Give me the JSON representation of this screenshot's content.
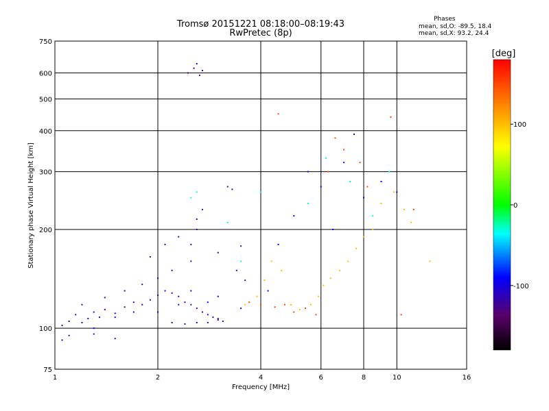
{
  "header": {
    "title_line1": "Tromsø 20151221 08:18:00–08:19:43",
    "title_line2": "RwPretec (8p)",
    "stats_title": "Phases",
    "stats_o": "mean, sd,O: -89.5, 18.4",
    "stats_x": "mean, sd,X:  93.2, 24.4"
  },
  "chart_data": {
    "type": "scatter",
    "title": "Tromsø 20151221 08:18:00–08:19:43",
    "subtitle": "RwPretec (8p)",
    "xlabel": "Frequency [MHz]",
    "ylabel": "Stationary phase Virtual Height [km]",
    "xscale": "log",
    "yscale": "log",
    "xlim": [
      1,
      16
    ],
    "ylim": [
      75,
      750
    ],
    "x_ticks": [
      1,
      2,
      4,
      6,
      8,
      10,
      16
    ],
    "x_tick_labels": [
      "1",
      "2",
      "4",
      "6",
      "8",
      "10",
      "16"
    ],
    "y_ticks": [
      75,
      100,
      200,
      300,
      400,
      500,
      600,
      750
    ],
    "y_tick_labels": [
      "75",
      "100",
      "200",
      "300",
      "400",
      "500",
      "600",
      "750"
    ],
    "grid": true,
    "colorbar": {
      "label": "[deg]",
      "range": [
        -180,
        180
      ],
      "ticks": [
        -100,
        0,
        100
      ],
      "tick_labels": [
        "-100",
        "0",
        "100"
      ]
    },
    "series": [
      {
        "phase_deg": -120,
        "points": [
          [
            1.05,
            102
          ],
          [
            1.1,
            105
          ],
          [
            1.15,
            110
          ],
          [
            1.2,
            104
          ],
          [
            1.25,
            107
          ],
          [
            1.3,
            112
          ],
          [
            1.35,
            108
          ],
          [
            1.4,
            114
          ],
          [
            1.5,
            111
          ],
          [
            1.6,
            116
          ],
          [
            1.7,
            120
          ],
          [
            1.8,
            118
          ],
          [
            1.9,
            122
          ],
          [
            2.0,
            126
          ],
          [
            2.1,
            130
          ],
          [
            2.2,
            128
          ],
          [
            2.3,
            125
          ],
          [
            2.4,
            120
          ],
          [
            2.5,
            118
          ],
          [
            2.6,
            115
          ],
          [
            2.7,
            112
          ],
          [
            2.8,
            110
          ],
          [
            2.9,
            108
          ],
          [
            3.0,
            106
          ],
          [
            3.1,
            105
          ],
          [
            1.2,
            118
          ],
          [
            1.4,
            124
          ],
          [
            1.6,
            130
          ],
          [
            1.8,
            136
          ],
          [
            2.0,
            142
          ],
          [
            2.2,
            150
          ],
          [
            2.5,
            160
          ],
          [
            2.5,
            180
          ],
          [
            2.6,
            200
          ],
          [
            2.6,
            215
          ],
          [
            2.7,
            230
          ],
          [
            2.55,
            620
          ],
          [
            2.6,
            640
          ],
          [
            2.45,
            600
          ],
          [
            2.7,
            610
          ],
          [
            2.65,
            590
          ],
          [
            1.05,
            92
          ],
          [
            1.1,
            95
          ],
          [
            1.3,
            96
          ],
          [
            1.5,
            93
          ],
          [
            2.2,
            104
          ],
          [
            2.4,
            103
          ],
          [
            2.6,
            104
          ],
          [
            2.8,
            104
          ],
          [
            3.0,
            107
          ],
          [
            3.2,
            270
          ],
          [
            3.3,
            265
          ],
          [
            3.4,
            150
          ],
          [
            3.6,
            140
          ],
          [
            3.0,
            170
          ],
          [
            2.1,
            180
          ],
          [
            1.9,
            165
          ],
          [
            2.3,
            190
          ],
          [
            3.5,
            178
          ]
        ]
      },
      {
        "phase_deg": -90,
        "points": [
          [
            1.3,
            100
          ],
          [
            1.5,
            108
          ],
          [
            1.7,
            112
          ],
          [
            2.0,
            112
          ],
          [
            2.3,
            118
          ],
          [
            2.5,
            130
          ],
          [
            2.8,
            120
          ],
          [
            3.0,
            125
          ],
          [
            3.5,
            115
          ],
          [
            4.2,
            130
          ],
          [
            4.5,
            180
          ],
          [
            5.0,
            220
          ],
          [
            5.5,
            300
          ],
          [
            6.0,
            270
          ],
          [
            6.5,
            200
          ],
          [
            7.0,
            320
          ],
          [
            7.5,
            390
          ],
          [
            8.0,
            250
          ],
          [
            9.0,
            280
          ],
          [
            10.0,
            260
          ]
        ]
      },
      {
        "phase_deg": -30,
        "points": [
          [
            2.5,
            250
          ],
          [
            2.6,
            260
          ],
          [
            3.2,
            210
          ],
          [
            3.5,
            160
          ],
          [
            4.0,
            260
          ],
          [
            5.5,
            240
          ],
          [
            6.2,
            330
          ],
          [
            7.3,
            280
          ],
          [
            8.5,
            220
          ],
          [
            9.5,
            300
          ]
        ]
      },
      {
        "phase_deg": 100,
        "points": [
          [
            3.6,
            118
          ],
          [
            3.9,
            125
          ],
          [
            4.1,
            140
          ],
          [
            4.3,
            160
          ],
          [
            4.6,
            150
          ],
          [
            4.9,
            118
          ],
          [
            5.2,
            114
          ],
          [
            5.6,
            118
          ],
          [
            5.9,
            125
          ],
          [
            6.1,
            135
          ],
          [
            6.4,
            142
          ],
          [
            6.8,
            150
          ],
          [
            7.2,
            160
          ],
          [
            7.6,
            175
          ],
          [
            8.0,
            190
          ],
          [
            8.5,
            200
          ],
          [
            9.0,
            240
          ],
          [
            9.8,
            260
          ],
          [
            10.5,
            230
          ],
          [
            11.0,
            210
          ],
          [
            12.5,
            160
          ]
        ]
      },
      {
        "phase_deg": 150,
        "points": [
          [
            3.7,
            120
          ],
          [
            4.0,
            118
          ],
          [
            4.4,
            116
          ],
          [
            4.7,
            118
          ],
          [
            5.0,
            112
          ],
          [
            5.4,
            115
          ],
          [
            5.8,
            110
          ],
          [
            6.3,
            300
          ],
          [
            6.6,
            380
          ],
          [
            7.0,
            350
          ],
          [
            7.8,
            320
          ],
          [
            8.2,
            270
          ],
          [
            9.6,
            440
          ],
          [
            4.5,
            450
          ],
          [
            10.3,
            110
          ],
          [
            11.2,
            230
          ]
        ]
      }
    ]
  }
}
